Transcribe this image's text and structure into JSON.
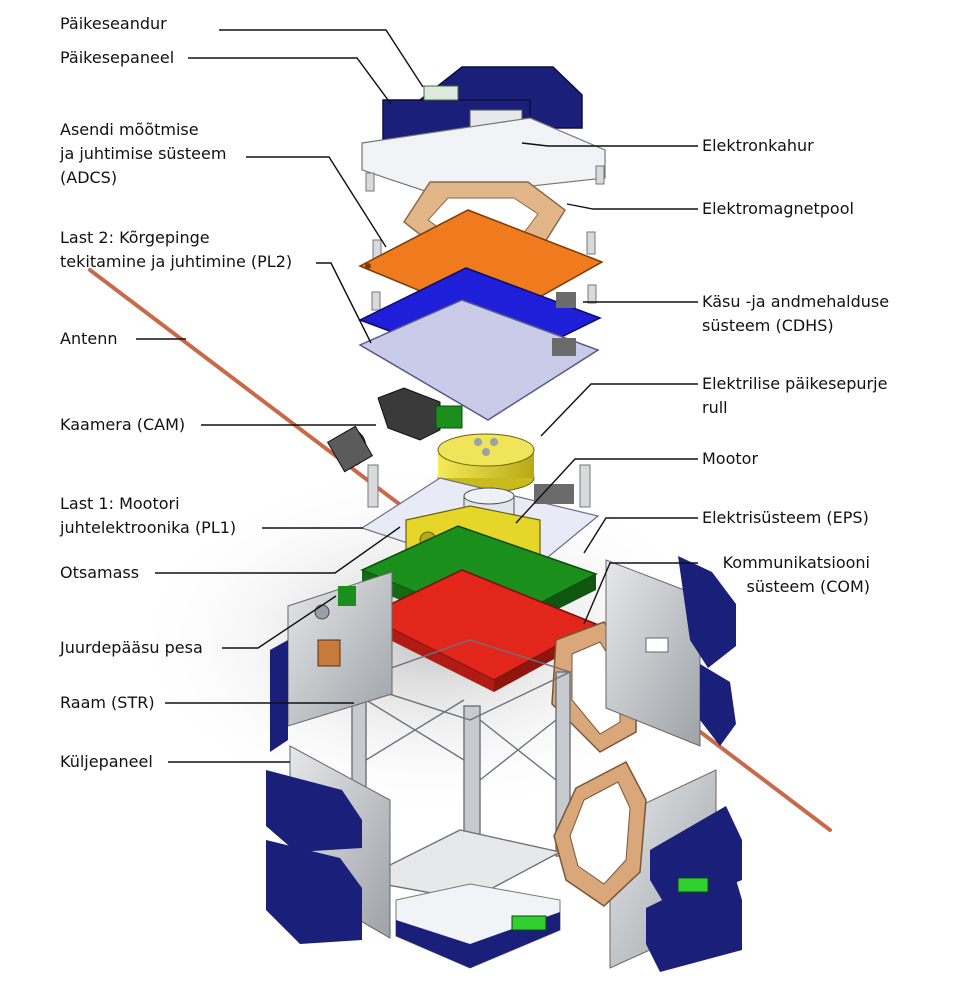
{
  "diagram": {
    "colors": {
      "solar_panel": "#1a1f7a",
      "adcs_board": "#f07a1e",
      "cdhs_board": "#1f1fd9",
      "pl2_board": "#c9cbe9",
      "eps_board": "#1b8f1b",
      "com_board": "#e3261b",
      "coil": "#d9a77a",
      "sail_reel": "#e6d62a",
      "antenna": "#c86a4a",
      "frame": "#b8bcc2"
    },
    "labels_left": [
      {
        "id": "sun-sensor",
        "lines": [
          "Päikeseandur"
        ]
      },
      {
        "id": "solar-panel",
        "lines": [
          "Päikesepaneel"
        ]
      },
      {
        "id": "adcs",
        "lines": [
          "Asendi mõõtmise",
          "ja juhtimise süsteem",
          "(ADCS)"
        ]
      },
      {
        "id": "pl2",
        "lines": [
          "Last 2: Kõrgepinge",
          "tekitamine ja juhtimine (PL2)"
        ]
      },
      {
        "id": "antenna",
        "lines": [
          "Antenn"
        ]
      },
      {
        "id": "camera",
        "lines": [
          "Kaamera (CAM)"
        ]
      },
      {
        "id": "pl1",
        "lines": [
          "Last 1: Mootori",
          "juhtelektroonika (PL1)"
        ]
      },
      {
        "id": "end-mass",
        "lines": [
          "Otsamass"
        ]
      },
      {
        "id": "access-port",
        "lines": [
          "Juurdepääsu pesa"
        ]
      },
      {
        "id": "frame",
        "lines": [
          "Raam (STR)"
        ]
      },
      {
        "id": "side-panel",
        "lines": [
          "Küljepaneel"
        ]
      }
    ],
    "labels_right": [
      {
        "id": "electron-gun",
        "lines": [
          "Elektronkahur"
        ]
      },
      {
        "id": "electromagnet-coil",
        "lines": [
          "Elektromagnetpool"
        ]
      },
      {
        "id": "cdhs",
        "lines": [
          "Käsu -ja andmehalduse",
          "süsteem (CDHS)"
        ]
      },
      {
        "id": "sail-reel",
        "lines": [
          "Elektrilise päikesepurje",
          "rull"
        ]
      },
      {
        "id": "motor",
        "lines": [
          "Mootor"
        ]
      },
      {
        "id": "eps",
        "lines": [
          "Elektrisüsteem (EPS)"
        ]
      },
      {
        "id": "com",
        "lines": [
          "Kommunikatsiooni",
          "süsteem (COM)"
        ]
      }
    ]
  }
}
